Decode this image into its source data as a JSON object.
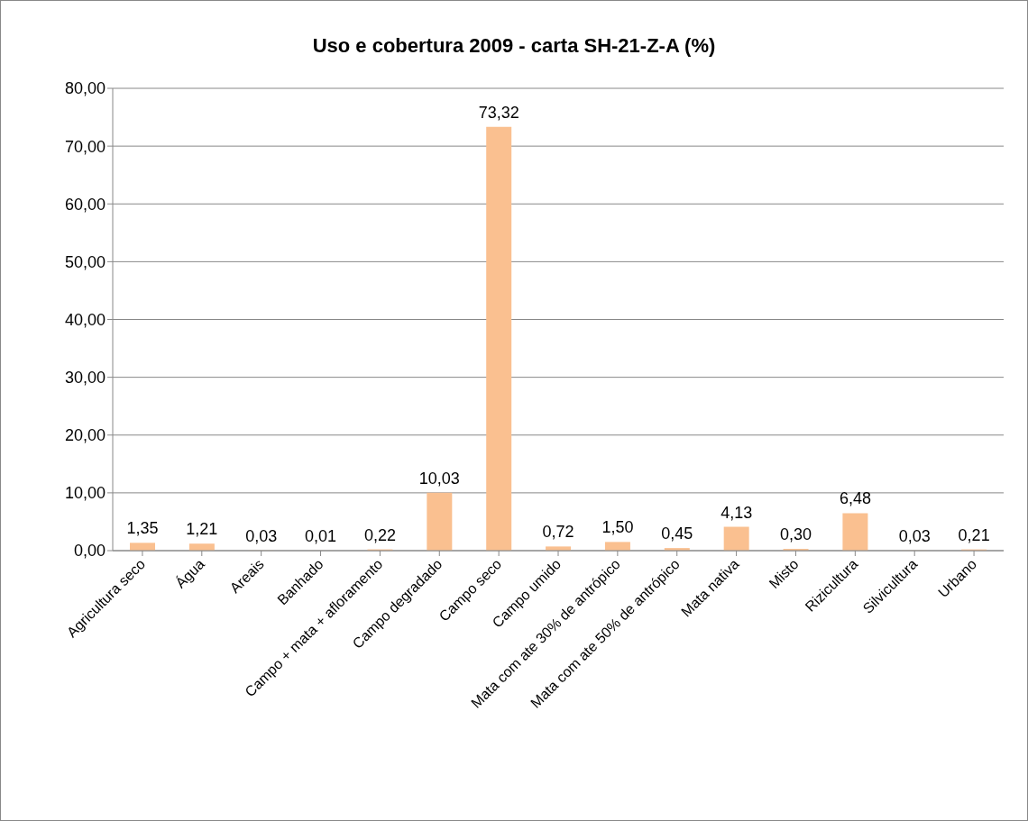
{
  "chart_data": {
    "type": "bar",
    "title": "Uso e cobertura 2009 - carta SH-21-Z-A (%)",
    "categories": [
      "Agricultura seco",
      "Água",
      "Areais",
      "Banhado",
      "Campo + mata + afloramento",
      "Campo degradado",
      "Campo seco",
      "Campo umido",
      "Mata com ate 30% de antrópico",
      "Mata com ate 50% de antrópico",
      "Mata nativa",
      "Misto",
      "Rizicultura",
      "Silvicultura",
      "Urbano"
    ],
    "values": [
      1.35,
      1.21,
      0.03,
      0.01,
      0.22,
      10.03,
      73.32,
      0.72,
      1.5,
      0.45,
      4.13,
      0.3,
      6.48,
      0.03,
      0.21
    ],
    "value_labels": [
      "1,35",
      "1,21",
      "0,03",
      "0,01",
      "0,22",
      "10,03",
      "73,32",
      "0,72",
      "1,50",
      "0,45",
      "4,13",
      "0,30",
      "6,48",
      "0,03",
      "0,21"
    ],
    "color": "#fac090",
    "ylim": [
      0,
      80
    ],
    "yticks": [
      {
        "value": 0,
        "label": "0,00"
      },
      {
        "value": 10,
        "label": "10,00"
      },
      {
        "value": 20,
        "label": "20,00"
      },
      {
        "value": 30,
        "label": "30,00"
      },
      {
        "value": 40,
        "label": "40,00"
      },
      {
        "value": 50,
        "label": "50,00"
      },
      {
        "value": 60,
        "label": "60,00"
      },
      {
        "value": 70,
        "label": "70,00"
      },
      {
        "value": 80,
        "label": "80,00"
      }
    ],
    "grid": "y",
    "legend": false
  }
}
